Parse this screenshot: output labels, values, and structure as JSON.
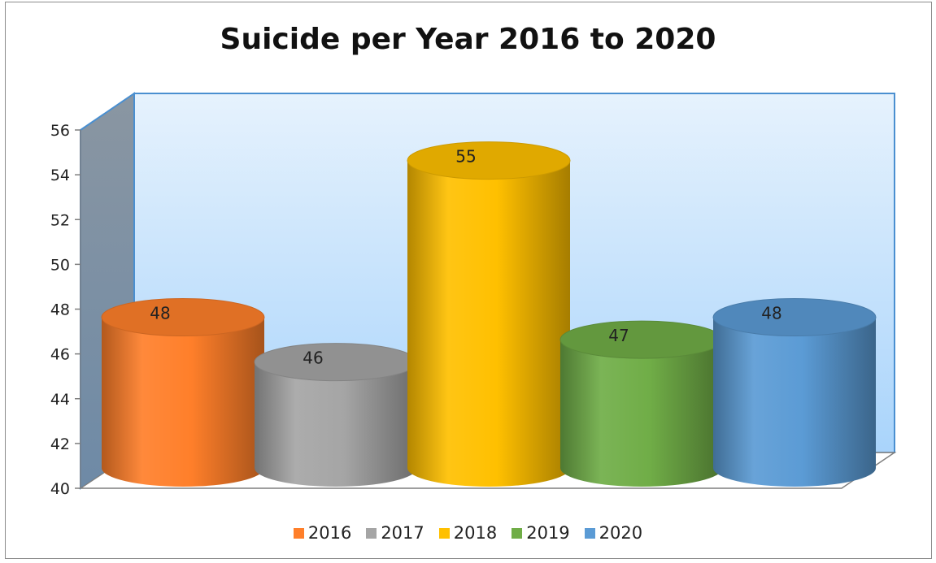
{
  "chart_data": {
    "type": "bar",
    "title": "Suicide per Year 2016 to 2020",
    "categories": [
      "2016",
      "2017",
      "2018",
      "2019",
      "2020"
    ],
    "values": [
      48,
      46,
      55,
      47,
      48
    ],
    "colors": [
      "#ff7f2a",
      "#a5a5a5",
      "#ffc000",
      "#70ad47",
      "#5b9bd5"
    ],
    "ylim": [
      40,
      56
    ],
    "yticks": [
      "40",
      "42",
      "44",
      "46",
      "48",
      "50",
      "52",
      "54",
      "56"
    ],
    "legend_position": "bottom",
    "grid": false,
    "xlabel": "",
    "ylabel": ""
  }
}
